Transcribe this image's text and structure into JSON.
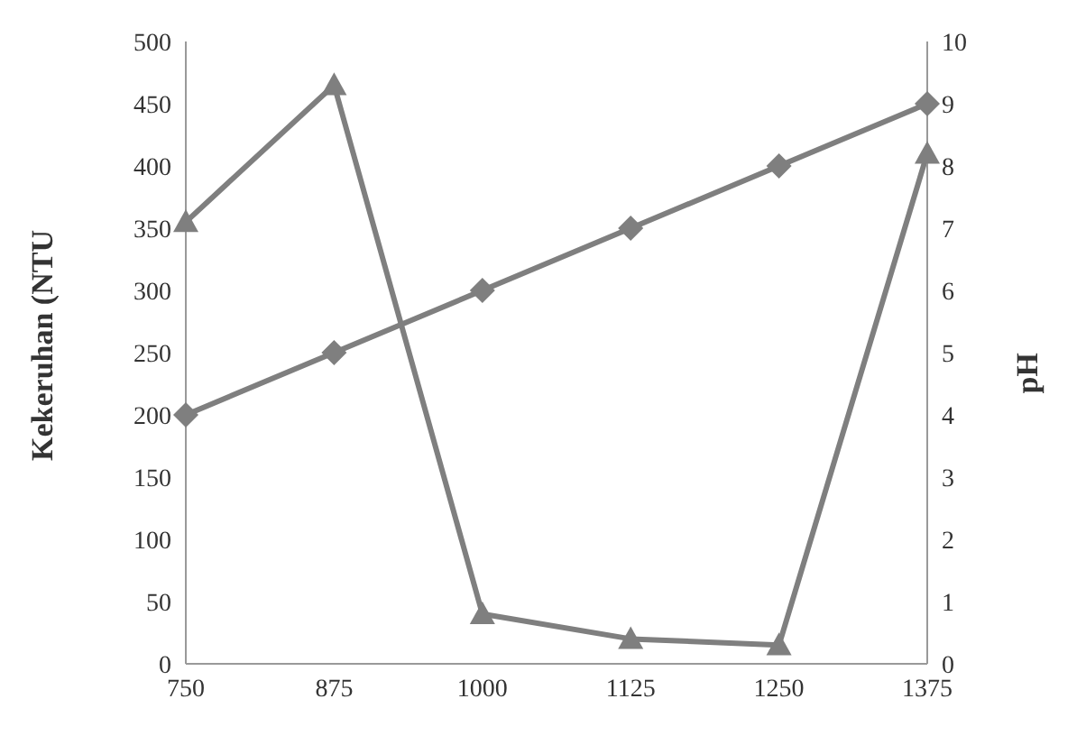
{
  "chart_data": {
    "type": "line",
    "ylabel": "Kekeruhan (NTU",
    "y2label": "pH",
    "categories": [
      "750",
      "875",
      "1000",
      "1125",
      "1250",
      "1375"
    ],
    "series": [
      {
        "color": "#7f7f7f",
        "marker": "triangle",
        "values": [
          355,
          465,
          40,
          20,
          15,
          410
        ]
      },
      {
        "color": "#7f7f7f",
        "marker": "diamond",
        "axis": "y2",
        "values": [
          4,
          5,
          6,
          7,
          8,
          9
        ]
      }
    ],
    "ylim": [
      0,
      500
    ],
    "yticks": [
      0,
      50,
      100,
      150,
      200,
      250,
      300,
      350,
      400,
      450,
      500
    ],
    "y2lim": [
      0,
      10
    ],
    "y2ticks": [
      0,
      1,
      2,
      3,
      4,
      5,
      6,
      7,
      8,
      9,
      10
    ],
    "grid": false,
    "legend": false,
    "line_style": "solid"
  }
}
